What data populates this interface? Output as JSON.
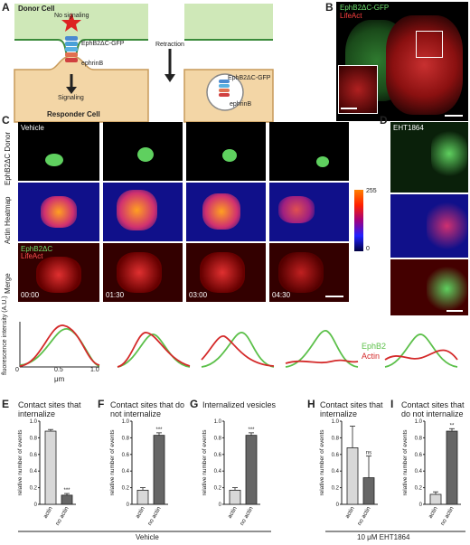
{
  "panels": {
    "A": "A",
    "B": "B",
    "C": "C",
    "D": "D",
    "E": "E",
    "F": "F",
    "G": "G",
    "H": "H",
    "I": "I"
  },
  "schematic": {
    "donor_cell": "Donor Cell",
    "no_signaling": "No signaling",
    "receptor": "EphB2ΔC-GFP",
    "ligand": "ephrinB",
    "signaling": "Signaling",
    "responder_cell": "Responder Cell",
    "retraction": "Retraction",
    "receptor2": "EphB2ΔC-GFP",
    "ligand2": "ephrinB"
  },
  "panel_b": {
    "green_label": "EphB2ΔC-GFP",
    "red_label": "LifeAct"
  },
  "panel_c": {
    "vehicle": "Vehicle",
    "row_labels": [
      "EphB2ΔC Donor",
      "Actin Heatmap",
      "Merge"
    ],
    "merge_green": "EphB2ΔC",
    "merge_red": "LifeAct",
    "timestamps": [
      "00:00",
      "01:30",
      "03:00",
      "04:30"
    ],
    "colorbar_max": "255",
    "colorbar_min": "0"
  },
  "panel_d": {
    "drug": "EHT1864"
  },
  "profiles": {
    "ylabel": "fluorescence intensity (A.U.)",
    "xlabel": "μm",
    "ticks": [
      "0",
      "0.5",
      "1.0"
    ],
    "legend_green": "EphB2",
    "legend_red": "Actin",
    "green_color": "#5cc04a",
    "red_color": "#d42a2a"
  },
  "charts_text": {
    "ylabel": "relative number of events",
    "yticks": [
      "0",
      "0.2",
      "0.4",
      "0.6",
      "0.8",
      "1.0"
    ],
    "vehicle_label": "Vehicle",
    "eht_label": "10 μM EHT1864"
  },
  "chart_data": [
    {
      "panel": "E",
      "type": "bar",
      "title": "Contact sites that internalize",
      "categories": [
        "actin",
        "no actin"
      ],
      "values": [
        0.88,
        0.11
      ],
      "errors": [
        0.02,
        0.02
      ],
      "significance": [
        "",
        "***"
      ],
      "ylabel": "relative number of events",
      "ylim": [
        0,
        1.0
      ]
    },
    {
      "panel": "F",
      "type": "bar",
      "title": "Contact sites that do not internalize",
      "categories": [
        "actin",
        "no actin"
      ],
      "values": [
        0.17,
        0.83
      ],
      "errors": [
        0.03,
        0.03
      ],
      "significance": [
        "",
        "***"
      ],
      "ylabel": "relative number of events",
      "ylim": [
        0,
        1.0
      ]
    },
    {
      "panel": "G",
      "type": "bar",
      "title": "Internalized vesicles",
      "categories": [
        "actin",
        "no actin"
      ],
      "values": [
        0.17,
        0.83
      ],
      "errors": [
        0.03,
        0.03
      ],
      "significance": [
        "",
        "***"
      ],
      "ylabel": "relative number of events",
      "ylim": [
        0,
        1.0
      ]
    },
    {
      "panel": "H",
      "type": "bar",
      "title": "Contact sites that internalize",
      "categories": [
        "actin",
        "no actin"
      ],
      "values": [
        0.68,
        0.32
      ],
      "errors": [
        0.26,
        0.26
      ],
      "significance": [
        "",
        "ns"
      ],
      "ylabel": "relative number of events",
      "ylim": [
        0,
        1.0
      ]
    },
    {
      "panel": "I",
      "type": "bar",
      "title": "Contact sites that do not internalize",
      "categories": [
        "actin",
        "no actin"
      ],
      "values": [
        0.12,
        0.88
      ],
      "errors": [
        0.03,
        0.03
      ],
      "significance": [
        "",
        "**"
      ],
      "ylabel": "relative number of events",
      "ylim": [
        0,
        1.0
      ]
    }
  ]
}
